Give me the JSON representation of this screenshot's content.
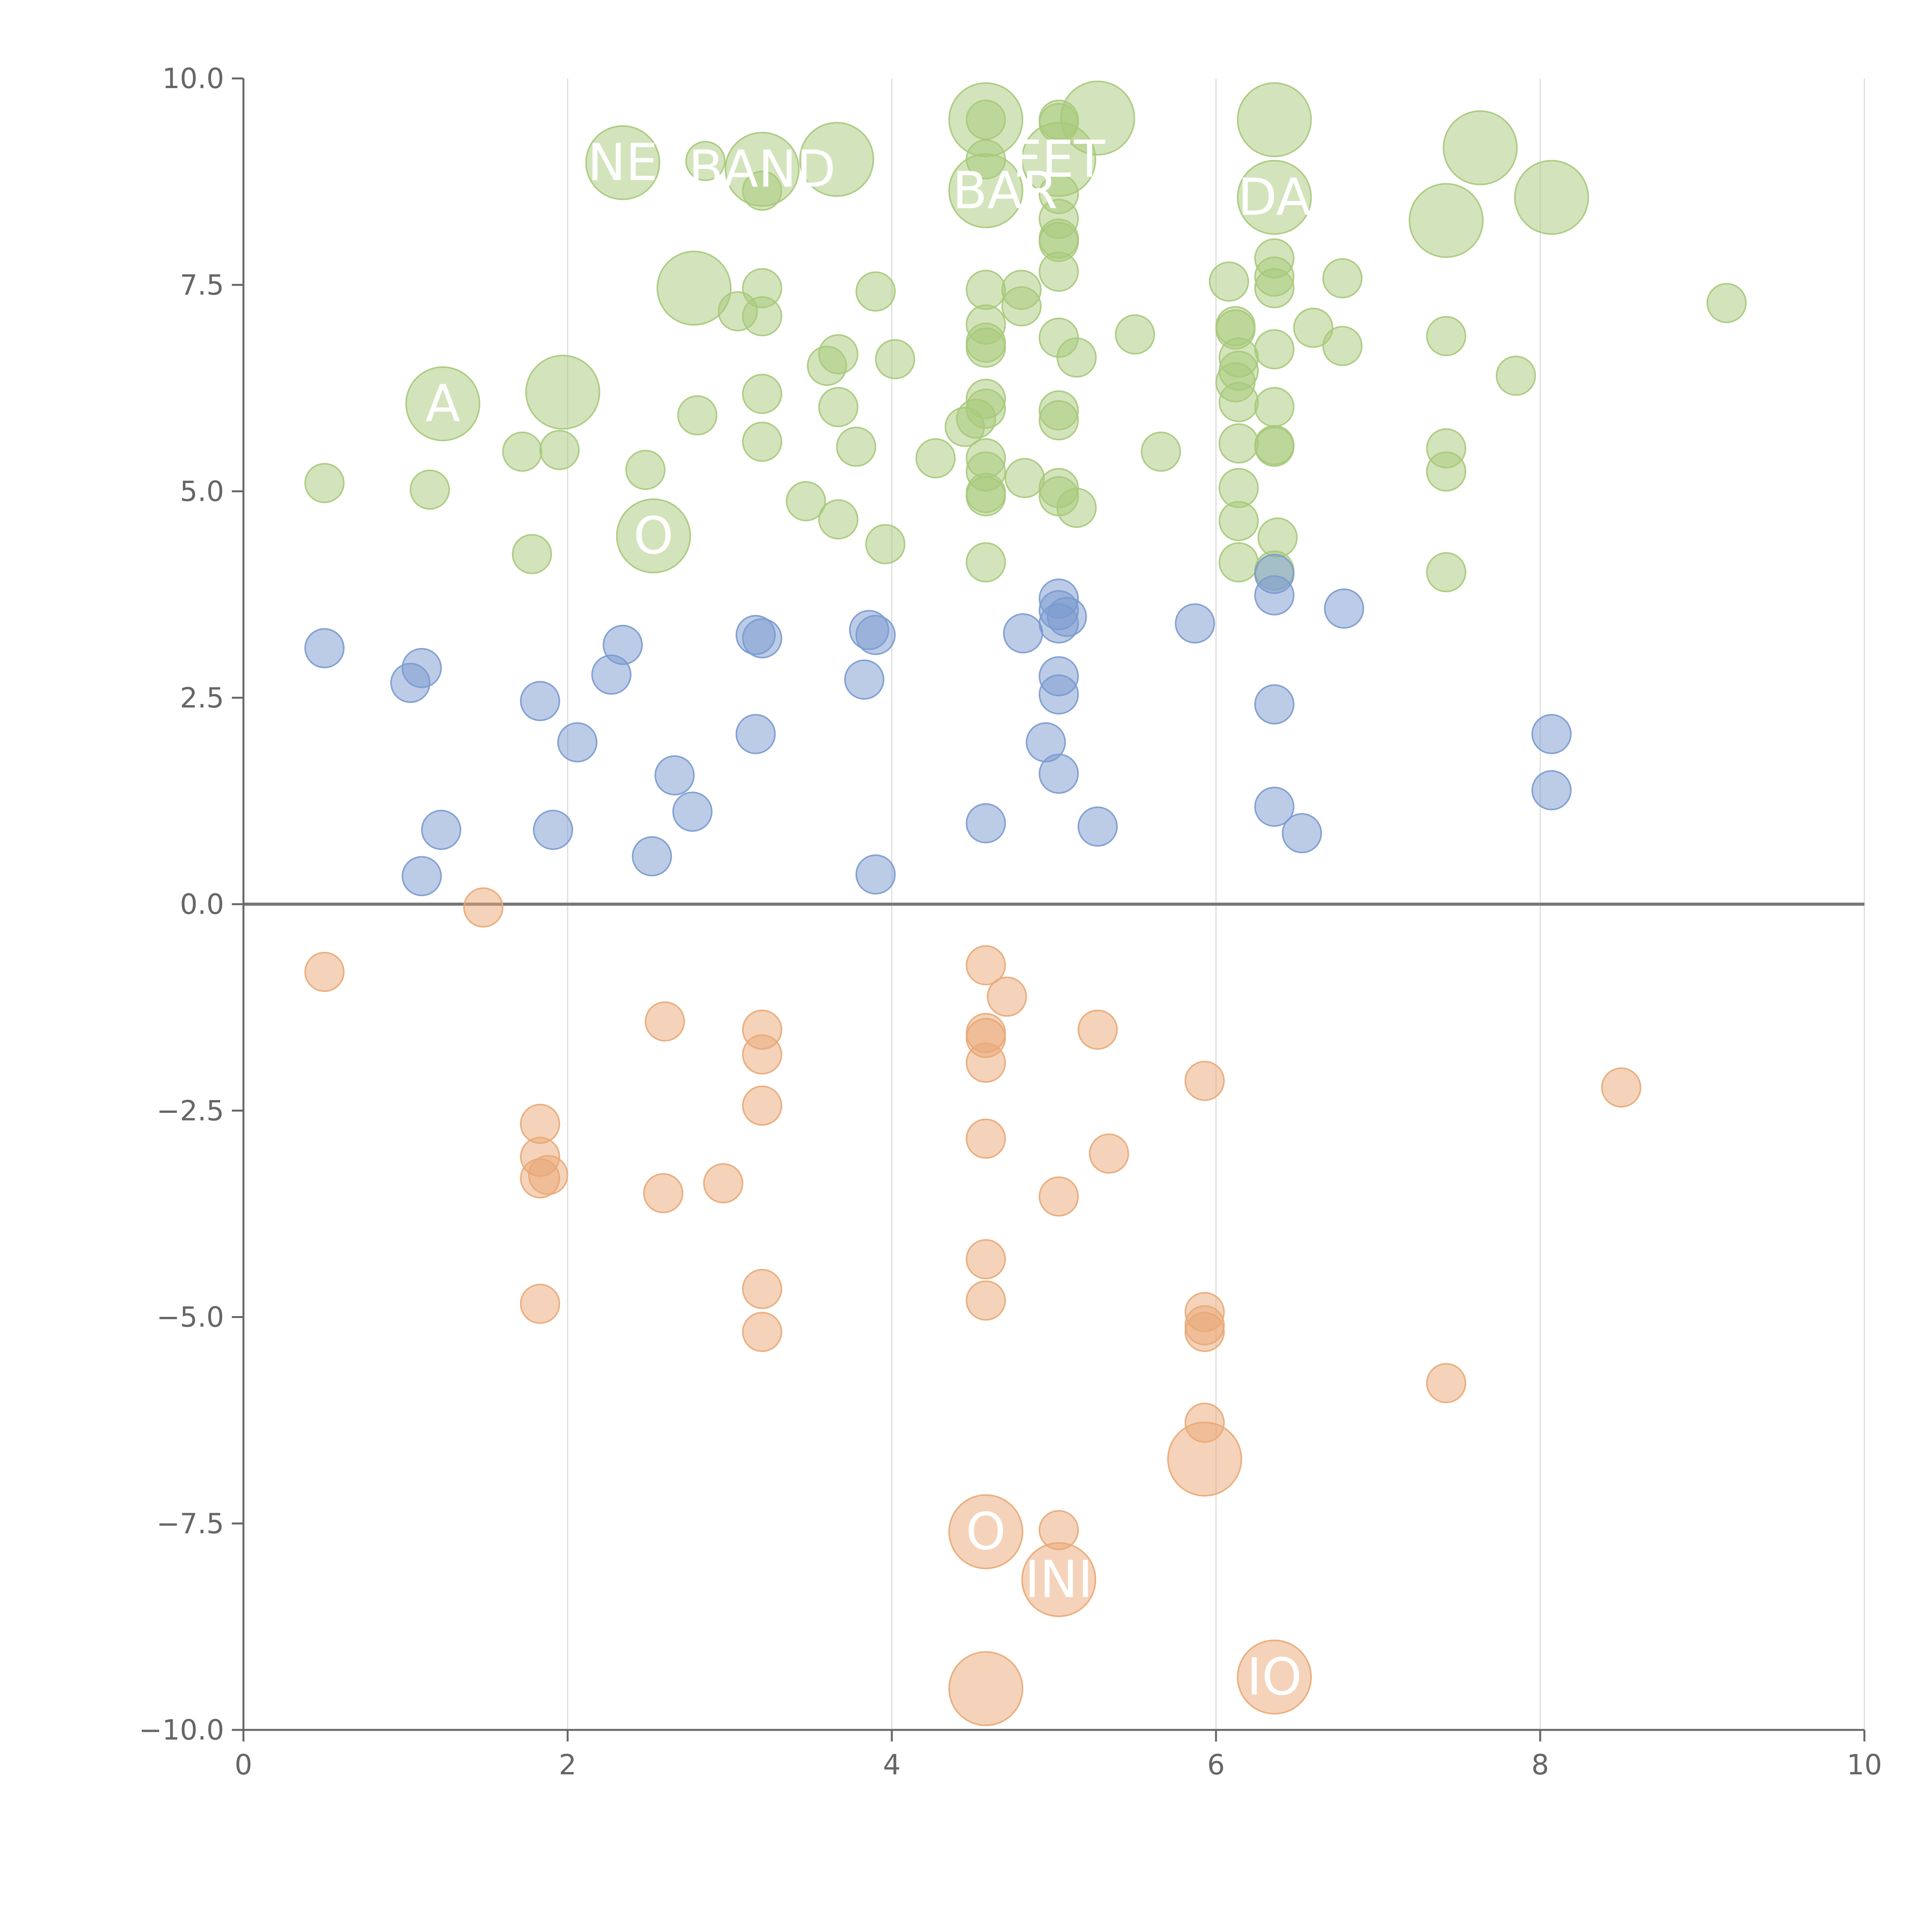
{
  "chart_data": {
    "type": "scatter",
    "title": "",
    "xlabel": "",
    "ylabel": "",
    "xlim": [
      0,
      10
    ],
    "ylim": [
      -10,
      10
    ],
    "x_ticks": [
      0,
      2,
      4,
      6,
      8,
      10
    ],
    "x_tick_labels": [
      "0",
      "2",
      "4",
      "6",
      "8",
      "10"
    ],
    "y_ticks": [
      -10,
      -7.5,
      -5,
      -2.5,
      0,
      2.5,
      5,
      7.5,
      10
    ],
    "y_tick_labels": [
      "−10.0",
      "−7.5",
      "−5.0",
      "−2.5",
      "0.0",
      "2.5",
      "5.0",
      "7.5",
      "10.0"
    ],
    "grid": {
      "x": true,
      "y": false
    },
    "zero_line": true,
    "legend": "none",
    "colors": {
      "green": "#a7c97a",
      "blue": "#7a9ad0",
      "orange": "#e9a876",
      "axis": "#666666",
      "grid": "#dddddd"
    },
    "series": [
      {
        "color": "#a7c97a",
        "points": [
          {
            "x": 0.5,
            "y": 5.1
          },
          {
            "x": 1.15,
            "y": 5.02
          },
          {
            "x": 1.72,
            "y": 5.48
          },
          {
            "x": 1.78,
            "y": 4.24
          },
          {
            "x": 1.95,
            "y": 5.5
          },
          {
            "x": 2.48,
            "y": 5.26
          },
          {
            "x": 2.8,
            "y": 5.92
          },
          {
            "x": 2.85,
            "y": 9.0
          },
          {
            "x": 3.05,
            "y": 7.18
          },
          {
            "x": 3.2,
            "y": 7.46
          },
          {
            "x": 3.2,
            "y": 7.12
          },
          {
            "x": 3.2,
            "y": 6.18
          },
          {
            "x": 3.2,
            "y": 5.6
          },
          {
            "x": 3.2,
            "y": 8.64
          },
          {
            "x": 3.47,
            "y": 4.88
          },
          {
            "x": 3.6,
            "y": 6.52
          },
          {
            "x": 3.67,
            "y": 6.66
          },
          {
            "x": 3.67,
            "y": 6.02
          },
          {
            "x": 3.67,
            "y": 4.66
          },
          {
            "x": 3.78,
            "y": 5.54
          },
          {
            "x": 3.9,
            "y": 7.42
          },
          {
            "x": 3.96,
            "y": 4.36
          },
          {
            "x": 4.02,
            "y": 6.6
          },
          {
            "x": 4.27,
            "y": 5.4
          },
          {
            "x": 4.45,
            "y": 5.78
          },
          {
            "x": 4.52,
            "y": 5.88
          },
          {
            "x": 4.58,
            "y": 7.44
          },
          {
            "x": 4.58,
            "y": 7.02
          },
          {
            "x": 4.58,
            "y": 6.8
          },
          {
            "x": 4.58,
            "y": 6.74
          },
          {
            "x": 4.58,
            "y": 6.12
          },
          {
            "x": 4.58,
            "y": 6.0
          },
          {
            "x": 4.58,
            "y": 5.4
          },
          {
            "x": 4.58,
            "y": 5.24
          },
          {
            "x": 4.58,
            "y": 4.98
          },
          {
            "x": 4.58,
            "y": 4.94
          },
          {
            "x": 4.58,
            "y": 4.14
          },
          {
            "x": 4.58,
            "y": 9.5
          },
          {
            "x": 4.58,
            "y": 9.02
          },
          {
            "x": 4.8,
            "y": 7.44
          },
          {
            "x": 4.8,
            "y": 7.24
          },
          {
            "x": 4.82,
            "y": 5.16
          },
          {
            "x": 5.03,
            "y": 9.5
          },
          {
            "x": 5.03,
            "y": 9.46
          },
          {
            "x": 5.03,
            "y": 8.6
          },
          {
            "x": 5.03,
            "y": 8.3
          },
          {
            "x": 5.03,
            "y": 8.06
          },
          {
            "x": 5.03,
            "y": 8.02
          },
          {
            "x": 5.03,
            "y": 7.66
          },
          {
            "x": 5.03,
            "y": 6.86
          },
          {
            "x": 5.03,
            "y": 5.98
          },
          {
            "x": 5.03,
            "y": 5.86
          },
          {
            "x": 5.03,
            "y": 5.04
          },
          {
            "x": 5.03,
            "y": 4.94
          },
          {
            "x": 5.14,
            "y": 4.8
          },
          {
            "x": 5.14,
            "y": 6.62
          },
          {
            "x": 5.5,
            "y": 6.9
          },
          {
            "x": 5.66,
            "y": 5.48
          },
          {
            "x": 6.08,
            "y": 7.54
          },
          {
            "x": 6.12,
            "y": 7.0
          },
          {
            "x": 6.12,
            "y": 6.96
          },
          {
            "x": 6.14,
            "y": 6.62
          },
          {
            "x": 6.14,
            "y": 6.46
          },
          {
            "x": 6.12,
            "y": 6.32
          },
          {
            "x": 6.14,
            "y": 6.08
          },
          {
            "x": 6.14,
            "y": 5.58
          },
          {
            "x": 6.14,
            "y": 5.04
          },
          {
            "x": 6.14,
            "y": 4.64
          },
          {
            "x": 6.14,
            "y": 4.14
          },
          {
            "x": 6.36,
            "y": 7.82
          },
          {
            "x": 6.36,
            "y": 7.6
          },
          {
            "x": 6.36,
            "y": 7.46
          },
          {
            "x": 6.36,
            "y": 6.72
          },
          {
            "x": 6.36,
            "y": 6.02
          },
          {
            "x": 6.36,
            "y": 5.56
          },
          {
            "x": 6.36,
            "y": 5.54
          },
          {
            "x": 6.38,
            "y": 4.44
          },
          {
            "x": 6.36,
            "y": 4.04
          },
          {
            "x": 6.6,
            "y": 6.98
          },
          {
            "x": 6.78,
            "y": 7.58
          },
          {
            "x": 6.78,
            "y": 6.76
          },
          {
            "x": 7.42,
            "y": 6.88
          },
          {
            "x": 7.42,
            "y": 5.52
          },
          {
            "x": 7.42,
            "y": 5.24
          },
          {
            "x": 7.42,
            "y": 4.02
          },
          {
            "x": 7.85,
            "y": 6.4
          },
          {
            "x": 9.15,
            "y": 7.28
          }
        ]
      },
      {
        "color": "#a7c97a",
        "points": [
          {
            "x": 1.23,
            "y": 6.06,
            "label": "A"
          },
          {
            "x": 1.97,
            "y": 6.2,
            "label": ""
          },
          {
            "x": 2.34,
            "y": 8.98,
            "label": "NE"
          },
          {
            "x": 2.78,
            "y": 7.46,
            "label": ""
          },
          {
            "x": 3.2,
            "y": 8.9,
            "label": "BAND"
          },
          {
            "x": 3.66,
            "y": 9.02,
            "label": ""
          },
          {
            "x": 4.58,
            "y": 9.5,
            "label": ""
          },
          {
            "x": 4.58,
            "y": 8.64,
            "label": "HBAR"
          },
          {
            "x": 5.03,
            "y": 9.02,
            "label": "FET"
          },
          {
            "x": 5.27,
            "y": 9.52,
            "label": ""
          },
          {
            "x": 6.36,
            "y": 9.5,
            "label": ""
          },
          {
            "x": 6.36,
            "y": 8.56,
            "label": "DA"
          },
          {
            "x": 7.42,
            "y": 8.28,
            "label": ""
          },
          {
            "x": 7.63,
            "y": 9.16,
            "label": ""
          },
          {
            "x": 8.07,
            "y": 8.56,
            "label": ""
          },
          {
            "x": 2.53,
            "y": 4.46,
            "label": "O"
          }
        ]
      },
      {
        "color": "#7a9ad0",
        "points": [
          {
            "x": 0.5,
            "y": 3.1
          },
          {
            "x": 1.03,
            "y": 2.68
          },
          {
            "x": 1.1,
            "y": 2.86
          },
          {
            "x": 1.1,
            "y": 0.34
          },
          {
            "x": 1.22,
            "y": 0.9
          },
          {
            "x": 1.83,
            "y": 2.46
          },
          {
            "x": 1.91,
            "y": 0.9
          },
          {
            "x": 2.06,
            "y": 1.96
          },
          {
            "x": 2.27,
            "y": 2.78
          },
          {
            "x": 2.34,
            "y": 3.14
          },
          {
            "x": 2.52,
            "y": 0.58
          },
          {
            "x": 2.66,
            "y": 1.56
          },
          {
            "x": 2.77,
            "y": 1.12
          },
          {
            "x": 3.16,
            "y": 3.26
          },
          {
            "x": 3.2,
            "y": 3.22
          },
          {
            "x": 3.16,
            "y": 2.06
          },
          {
            "x": 3.83,
            "y": 2.72
          },
          {
            "x": 3.86,
            "y": 3.32
          },
          {
            "x": 3.9,
            "y": 3.26
          },
          {
            "x": 3.9,
            "y": 0.36
          },
          {
            "x": 4.58,
            "y": 0.98
          },
          {
            "x": 4.81,
            "y": 3.28
          },
          {
            "x": 4.95,
            "y": 1.96
          },
          {
            "x": 5.03,
            "y": 3.7
          },
          {
            "x": 5.03,
            "y": 3.56
          },
          {
            "x": 5.03,
            "y": 3.4
          },
          {
            "x": 5.08,
            "y": 3.48
          },
          {
            "x": 5.03,
            "y": 2.76
          },
          {
            "x": 5.03,
            "y": 2.54
          },
          {
            "x": 5.03,
            "y": 1.58
          },
          {
            "x": 5.27,
            "y": 0.94
          },
          {
            "x": 5.87,
            "y": 3.4
          },
          {
            "x": 6.36,
            "y": 4.0
          },
          {
            "x": 6.36,
            "y": 3.74
          },
          {
            "x": 6.36,
            "y": 2.42
          },
          {
            "x": 6.36,
            "y": 1.18
          },
          {
            "x": 6.53,
            "y": 0.86
          },
          {
            "x": 6.79,
            "y": 3.58
          },
          {
            "x": 8.07,
            "y": 2.06
          },
          {
            "x": 8.07,
            "y": 1.38
          }
        ]
      },
      {
        "color": "#e9a876",
        "points": [
          {
            "x": 0.5,
            "y": -0.82
          },
          {
            "x": 1.48,
            "y": -0.04
          },
          {
            "x": 1.83,
            "y": -2.66
          },
          {
            "x": 1.83,
            "y": -3.06
          },
          {
            "x": 1.83,
            "y": -3.32
          },
          {
            "x": 1.88,
            "y": -3.28
          },
          {
            "x": 1.83,
            "y": -4.84
          },
          {
            "x": 2.6,
            "y": -1.42
          },
          {
            "x": 2.59,
            "y": -3.5
          },
          {
            "x": 2.96,
            "y": -3.38
          },
          {
            "x": 3.2,
            "y": -1.52
          },
          {
            "x": 3.2,
            "y": -1.82
          },
          {
            "x": 3.2,
            "y": -2.44
          },
          {
            "x": 3.2,
            "y": -4.66
          },
          {
            "x": 3.2,
            "y": -5.18
          },
          {
            "x": 4.58,
            "y": -0.74
          },
          {
            "x": 4.58,
            "y": -1.56
          },
          {
            "x": 4.58,
            "y": -1.62
          },
          {
            "x": 4.58,
            "y": -1.92
          },
          {
            "x": 4.58,
            "y": -2.84
          },
          {
            "x": 4.58,
            "y": -4.3
          },
          {
            "x": 4.58,
            "y": -4.8
          },
          {
            "x": 4.71,
            "y": -1.12
          },
          {
            "x": 5.03,
            "y": -3.54
          },
          {
            "x": 5.03,
            "y": -7.58
          },
          {
            "x": 5.27,
            "y": -1.52
          },
          {
            "x": 5.34,
            "y": -3.02
          },
          {
            "x": 5.93,
            "y": -2.14
          },
          {
            "x": 5.93,
            "y": -4.94
          },
          {
            "x": 5.93,
            "y": -5.1
          },
          {
            "x": 5.93,
            "y": -5.18
          },
          {
            "x": 5.93,
            "y": -6.28
          },
          {
            "x": 7.42,
            "y": -5.8
          },
          {
            "x": 8.5,
            "y": -2.22
          }
        ]
      },
      {
        "color": "#e9a876",
        "points": [
          {
            "x": 5.93,
            "y": -6.72,
            "label": ""
          },
          {
            "x": 4.58,
            "y": -7.6,
            "label": "O"
          },
          {
            "x": 5.03,
            "y": -8.18,
            "label": "INI"
          },
          {
            "x": 4.58,
            "y": -9.5,
            "label": ""
          },
          {
            "x": 6.36,
            "y": -9.36,
            "label": "IO"
          }
        ]
      }
    ]
  }
}
